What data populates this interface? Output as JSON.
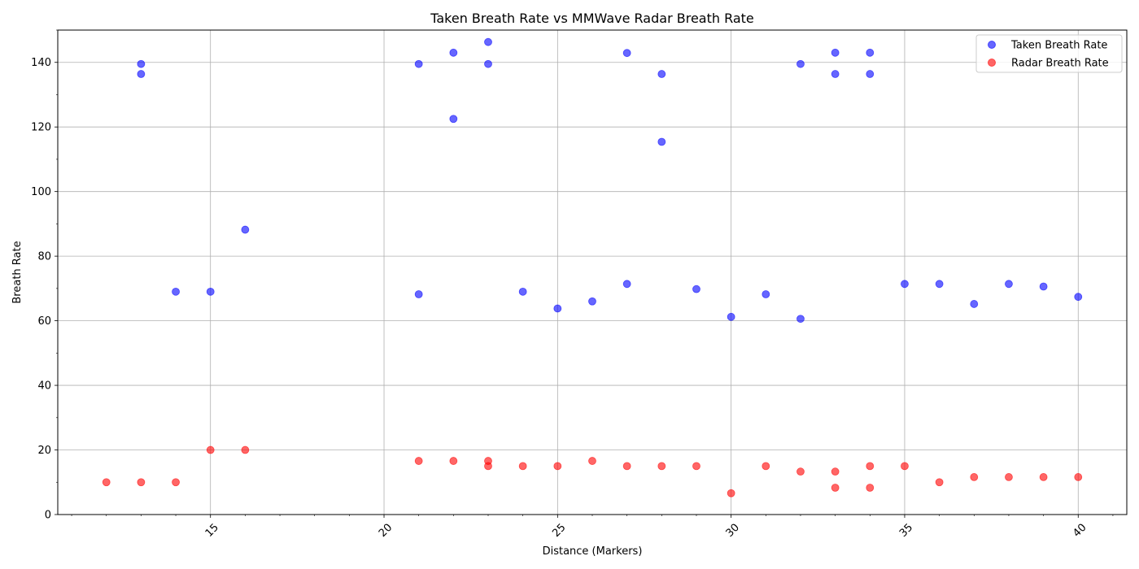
{
  "chart_data": {
    "type": "scatter",
    "title": "Taken Breath Rate vs MMWave Radar Breath Rate",
    "xlabel": "Distance (Markers)",
    "ylabel": "Breath Rate",
    "xlim": [
      10.6,
      41.4
    ],
    "ylim": [
      0,
      150
    ],
    "x_ticks": [
      15,
      20,
      25,
      30,
      35,
      40
    ],
    "y_ticks": [
      0,
      20,
      40,
      60,
      80,
      100,
      120,
      140
    ],
    "x_minor_step": 1,
    "y_minor_step": 10,
    "grid": true,
    "legend_position": "top-right",
    "series": [
      {
        "name": "Taken Breath Rate",
        "color": "#0000ff",
        "points": [
          [
            13,
            139.5
          ],
          [
            13,
            136.4
          ],
          [
            14,
            69
          ],
          [
            15,
            69
          ],
          [
            16,
            88.2
          ],
          [
            21,
            139.5
          ],
          [
            21,
            68.2
          ],
          [
            22,
            143
          ],
          [
            22,
            122.5
          ],
          [
            23,
            146.3
          ],
          [
            23,
            139.5
          ],
          [
            24,
            69
          ],
          [
            25,
            63.8
          ],
          [
            26,
            66
          ],
          [
            27,
            142.9
          ],
          [
            27,
            71.4
          ],
          [
            28,
            136.4
          ],
          [
            28,
            115.4
          ],
          [
            29,
            69.8
          ],
          [
            30,
            61.2
          ],
          [
            31,
            68.2
          ],
          [
            32,
            139.5
          ],
          [
            32,
            60.6
          ],
          [
            33,
            143
          ],
          [
            33,
            136.4
          ],
          [
            34,
            143
          ],
          [
            34,
            136.4
          ],
          [
            35,
            71.4
          ],
          [
            36,
            71.4
          ],
          [
            37,
            65.2
          ],
          [
            38,
            71.4
          ],
          [
            39,
            70.6
          ],
          [
            40,
            67.4
          ]
        ]
      },
      {
        "name": "Radar Breath Rate",
        "color": "#ff0000",
        "points": [
          [
            12,
            10
          ],
          [
            13,
            10
          ],
          [
            14,
            10
          ],
          [
            15,
            20
          ],
          [
            16,
            20
          ],
          [
            21,
            16.6
          ],
          [
            22,
            16.6
          ],
          [
            23,
            16.6
          ],
          [
            23,
            15
          ],
          [
            24,
            15
          ],
          [
            25,
            15
          ],
          [
            26,
            16.6
          ],
          [
            27,
            15
          ],
          [
            28,
            15
          ],
          [
            29,
            15
          ],
          [
            30,
            6.6
          ],
          [
            31,
            15
          ],
          [
            32,
            13.3
          ],
          [
            33,
            13.3
          ],
          [
            33,
            8.3
          ],
          [
            34,
            15
          ],
          [
            34,
            8.3
          ],
          [
            35,
            15
          ],
          [
            36,
            10
          ],
          [
            37,
            11.6
          ],
          [
            38,
            11.6
          ],
          [
            39,
            11.6
          ],
          [
            40,
            11.6
          ]
        ]
      }
    ]
  }
}
